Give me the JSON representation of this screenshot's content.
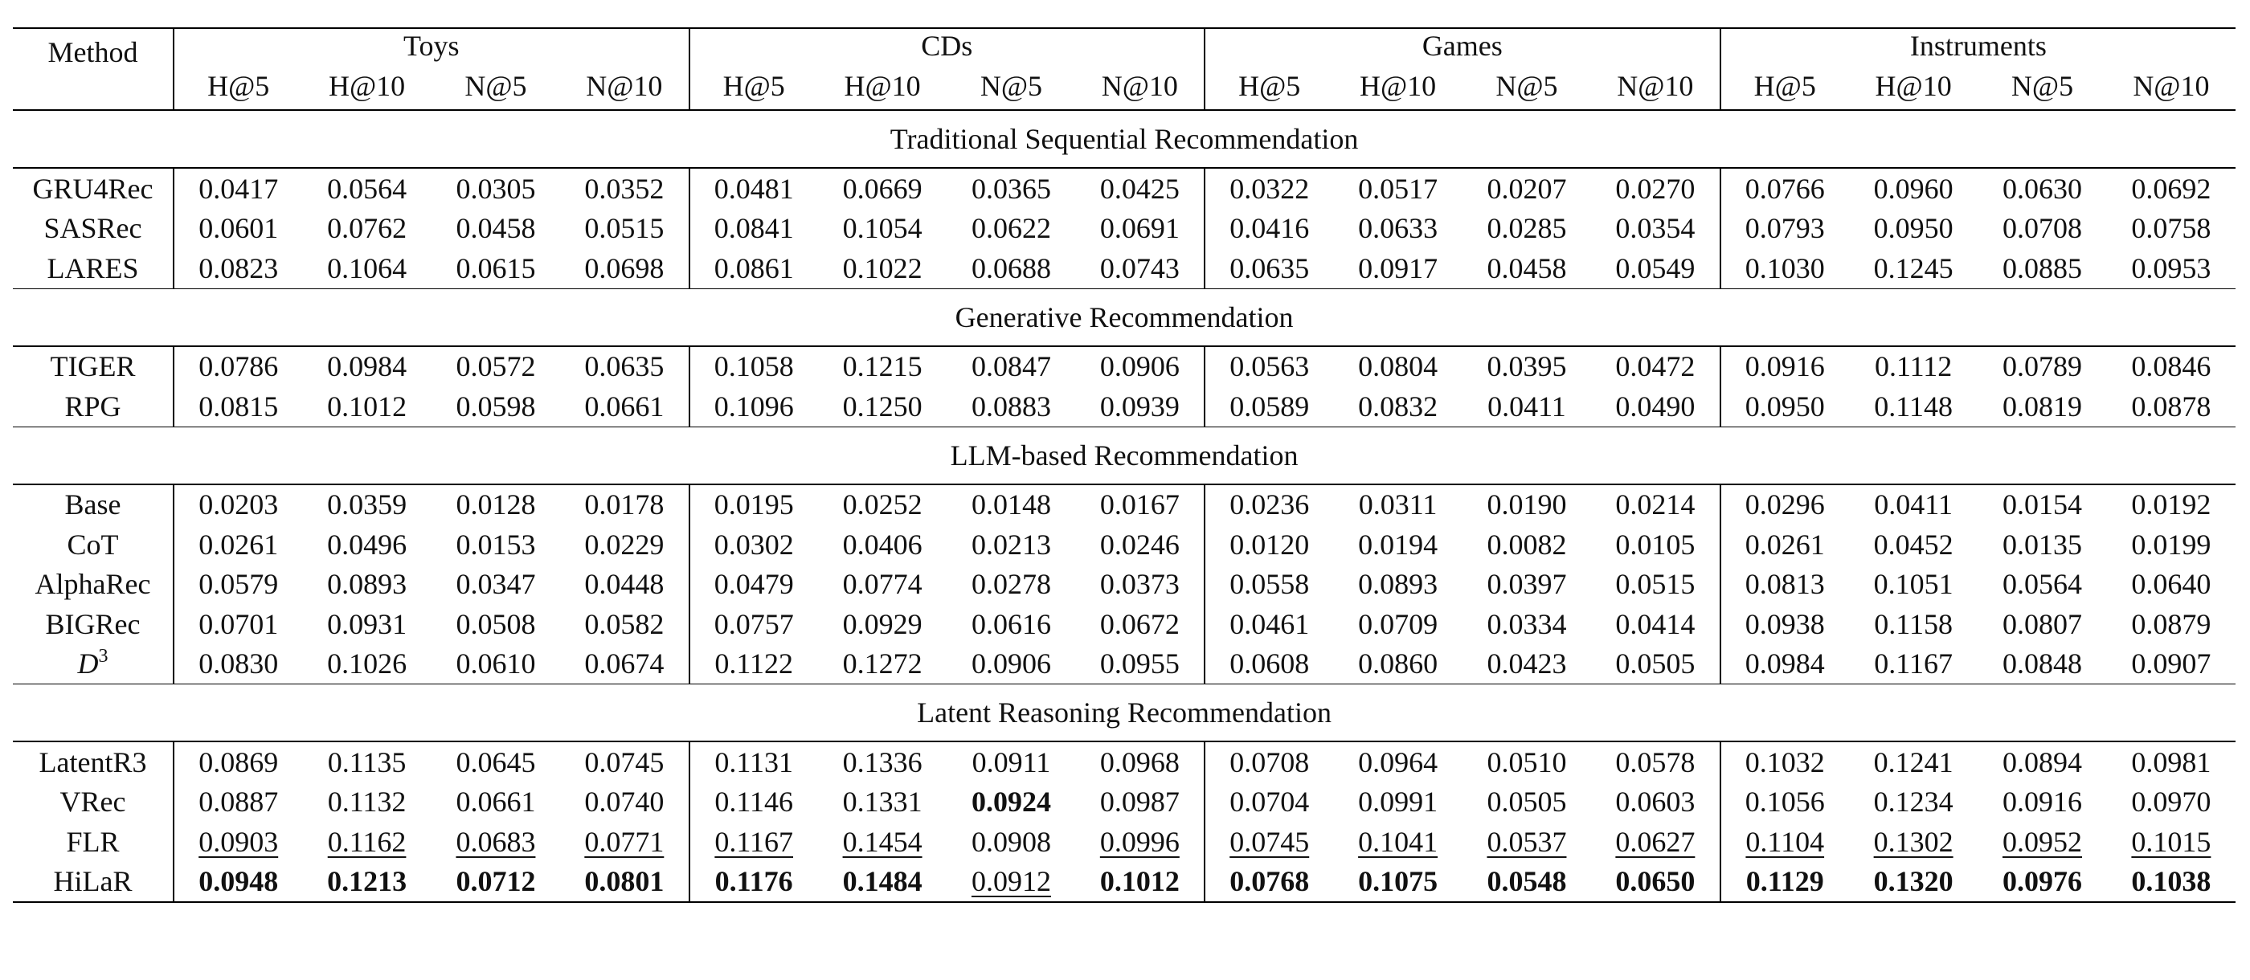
{
  "table": {
    "method_header": "Method",
    "datasets": [
      "Toys",
      "CDs",
      "Games",
      "Instruments"
    ],
    "metrics": [
      "H@5",
      "H@10",
      "N@5",
      "N@10"
    ],
    "sections": [
      {
        "title": "Traditional Sequential Recommendation",
        "rows": [
          {
            "method": "GRU4Rec",
            "values": [
              "0.0417",
              "0.0564",
              "0.0305",
              "0.0352",
              "0.0481",
              "0.0669",
              "0.0365",
              "0.0425",
              "0.0322",
              "0.0517",
              "0.0207",
              "0.0270",
              "0.0766",
              "0.0960",
              "0.0630",
              "0.0692"
            ]
          },
          {
            "method": "SASRec",
            "values": [
              "0.0601",
              "0.0762",
              "0.0458",
              "0.0515",
              "0.0841",
              "0.1054",
              "0.0622",
              "0.0691",
              "0.0416",
              "0.0633",
              "0.0285",
              "0.0354",
              "0.0793",
              "0.0950",
              "0.0708",
              "0.0758"
            ]
          },
          {
            "method": "LARES",
            "values": [
              "0.0823",
              "0.1064",
              "0.0615",
              "0.0698",
              "0.0861",
              "0.1022",
              "0.0688",
              "0.0743",
              "0.0635",
              "0.0917",
              "0.0458",
              "0.0549",
              "0.1030",
              "0.1245",
              "0.0885",
              "0.0953"
            ]
          }
        ]
      },
      {
        "title": "Generative Recommendation",
        "rows": [
          {
            "method": "TIGER",
            "values": [
              "0.0786",
              "0.0984",
              "0.0572",
              "0.0635",
              "0.1058",
              "0.1215",
              "0.0847",
              "0.0906",
              "0.0563",
              "0.0804",
              "0.0395",
              "0.0472",
              "0.0916",
              "0.1112",
              "0.0789",
              "0.0846"
            ]
          },
          {
            "method": "RPG",
            "values": [
              "0.0815",
              "0.1012",
              "0.0598",
              "0.0661",
              "0.1096",
              "0.1250",
              "0.0883",
              "0.0939",
              "0.0589",
              "0.0832",
              "0.0411",
              "0.0490",
              "0.0950",
              "0.1148",
              "0.0819",
              "0.0878"
            ]
          }
        ]
      },
      {
        "title": "LLM-based Recommendation",
        "rows": [
          {
            "method": "Base",
            "values": [
              "0.0203",
              "0.0359",
              "0.0128",
              "0.0178",
              "0.0195",
              "0.0252",
              "0.0148",
              "0.0167",
              "0.0236",
              "0.0311",
              "0.0190",
              "0.0214",
              "0.0296",
              "0.0411",
              "0.0154",
              "0.0192"
            ]
          },
          {
            "method": "CoT",
            "values": [
              "0.0261",
              "0.0496",
              "0.0153",
              "0.0229",
              "0.0302",
              "0.0406",
              "0.0213",
              "0.0246",
              "0.0120",
              "0.0194",
              "0.0082",
              "0.0105",
              "0.0261",
              "0.0452",
              "0.0135",
              "0.0199"
            ]
          },
          {
            "method": "AlphaRec",
            "values": [
              "0.0579",
              "0.0893",
              "0.0347",
              "0.0448",
              "0.0479",
              "0.0774",
              "0.0278",
              "0.0373",
              "0.0558",
              "0.0893",
              "0.0397",
              "0.0515",
              "0.0813",
              "0.1051",
              "0.0564",
              "0.0640"
            ]
          },
          {
            "method": "BIGRec",
            "values": [
              "0.0701",
              "0.0931",
              "0.0508",
              "0.0582",
              "0.0757",
              "0.0929",
              "0.0616",
              "0.0672",
              "0.0461",
              "0.0709",
              "0.0334",
              "0.0414",
              "0.0938",
              "0.1158",
              "0.0807",
              "0.0879"
            ]
          },
          {
            "method": "D",
            "method_sup": "3",
            "values": [
              "0.0830",
              "0.1026",
              "0.0610",
              "0.0674",
              "0.1122",
              "0.1272",
              "0.0906",
              "0.0955",
              "0.0608",
              "0.0860",
              "0.0423",
              "0.0505",
              "0.0984",
              "0.1167",
              "0.0848",
              "0.0907"
            ]
          }
        ]
      },
      {
        "title": "Latent Reasoning Recommendation",
        "rows": [
          {
            "method": "LatentR3",
            "values": [
              "0.0869",
              "0.1135",
              "0.0645",
              "0.0745",
              "0.1131",
              "0.1336",
              "0.0911",
              "0.0968",
              "0.0708",
              "0.0964",
              "0.0510",
              "0.0578",
              "0.1032",
              "0.1241",
              "0.0894",
              "0.0981"
            ]
          },
          {
            "method": "VRec",
            "values": [
              "0.0887",
              "0.1132",
              "0.0661",
              "0.0740",
              "0.1146",
              "0.1331",
              "0.0924",
              "0.0987",
              "0.0704",
              "0.0991",
              "0.0505",
              "0.0603",
              "0.1056",
              "0.1234",
              "0.0916",
              "0.0970"
            ],
            "bold": [
              6
            ]
          },
          {
            "method": "FLR",
            "values": [
              "0.0903",
              "0.1162",
              "0.0683",
              "0.0771",
              "0.1167",
              "0.1454",
              "0.0908",
              "0.0996",
              "0.0745",
              "0.1041",
              "0.0537",
              "0.0627",
              "0.1104",
              "0.1302",
              "0.0952",
              "0.1015"
            ],
            "underline": [
              0,
              1,
              2,
              3,
              4,
              5,
              7,
              8,
              9,
              10,
              11,
              12,
              13,
              14,
              15
            ]
          },
          {
            "method": "HiLaR",
            "values": [
              "0.0948",
              "0.1213",
              "0.0712",
              "0.0801",
              "0.1176",
              "0.1484",
              "0.0912",
              "0.1012",
              "0.0768",
              "0.1075",
              "0.0548",
              "0.0650",
              "0.1129",
              "0.1320",
              "0.0976",
              "0.1038"
            ],
            "bold": [
              0,
              1,
              2,
              3,
              4,
              5,
              7,
              8,
              9,
              10,
              11,
              12,
              13,
              14,
              15
            ],
            "underline": [
              6
            ]
          }
        ]
      }
    ]
  }
}
